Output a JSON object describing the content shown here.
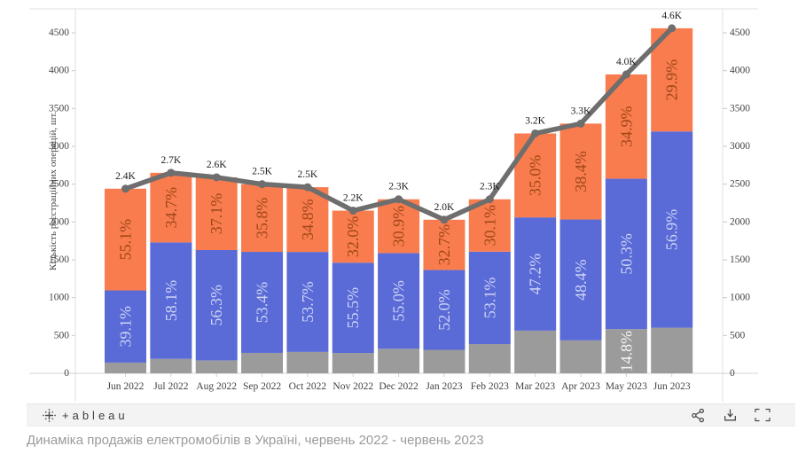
{
  "chart_data": {
    "type": "bar",
    "subtype": "stacked-bar-with-total-line",
    "title": "",
    "xlabel": "",
    "ylabel": "Кількість реєстраційних операцій, шт.",
    "ylim": [
      0,
      4500
    ],
    "yticks": [
      0,
      500,
      1000,
      1500,
      2000,
      2500,
      3000,
      3500,
      4000,
      4500
    ],
    "grid": false,
    "legend": "none",
    "categories": [
      "Jun 2022",
      "Jul 2022",
      "Aug 2022",
      "Sep 2022",
      "Oct 2022",
      "Nov 2022",
      "Dec 2022",
      "Jan 2023",
      "Feb 2023",
      "Mar 2023",
      "Apr 2023",
      "May 2023",
      "Jun 2023"
    ],
    "totals": [
      2440,
      2650,
      2590,
      2500,
      2460,
      2150,
      2300,
      2030,
      2300,
      3170,
      3300,
      3950,
      4560
    ],
    "total_labels": [
      "2.4K",
      "2.7K",
      "2.6K",
      "2.5K",
      "2.5K",
      "2.2K",
      "2.3K",
      "2.0K",
      "2.3K",
      "3.2K",
      "3.3K",
      "4.0K",
      "4.6K"
    ],
    "series": [
      {
        "name": "segment-gray",
        "color": "#9b9b9b",
        "label_color": "#f5f5f5",
        "pct": [
          5.8,
          7.2,
          6.6,
          10.8,
          11.5,
          12.5,
          14.1,
          15.3,
          16.8,
          17.8,
          13.2,
          14.8,
          13.2
        ],
        "labels": [
          null,
          null,
          null,
          null,
          null,
          null,
          null,
          null,
          null,
          null,
          null,
          "14.8%",
          null
        ]
      },
      {
        "name": "segment-blue",
        "color": "#5a6ad6",
        "label_color": "#cdd5f6",
        "pct": [
          39.1,
          58.1,
          56.3,
          53.4,
          53.7,
          55.5,
          55.0,
          52.0,
          53.1,
          47.2,
          48.4,
          50.3,
          56.9
        ],
        "labels": [
          "39.1%",
          "58.1%",
          "56.3%",
          "53.4%",
          "53.7%",
          "55.5%",
          "55.0%",
          "52.0%",
          "53.1%",
          "47.2%",
          "48.4%",
          "50.3%",
          "56.9%"
        ]
      },
      {
        "name": "segment-orange",
        "color": "#f87c4e",
        "label_color": "#9e4717",
        "pct": [
          55.1,
          34.7,
          37.1,
          35.8,
          34.8,
          32.0,
          30.9,
          32.7,
          30.1,
          35.0,
          38.4,
          34.9,
          29.9
        ],
        "labels": [
          "55.1%",
          "34.7%",
          "37.1%",
          "35.8%",
          "34.8%",
          "32.0%",
          "30.9%",
          "32.7%",
          "30.1%",
          "35.0%",
          "38.4%",
          "34.9%",
          "29.9%"
        ]
      }
    ],
    "line": {
      "name": "total-line",
      "color": "#6e6e6e",
      "values": [
        2440,
        2650,
        2590,
        2500,
        2460,
        2150,
        2300,
        2030,
        2300,
        3170,
        3300,
        3950,
        4560
      ]
    }
  },
  "footer": {
    "brand": "+ableau"
  },
  "caption": {
    "text": "Динаміка продажів електромобілів в Україні, червень 2022 - червень 2023"
  }
}
